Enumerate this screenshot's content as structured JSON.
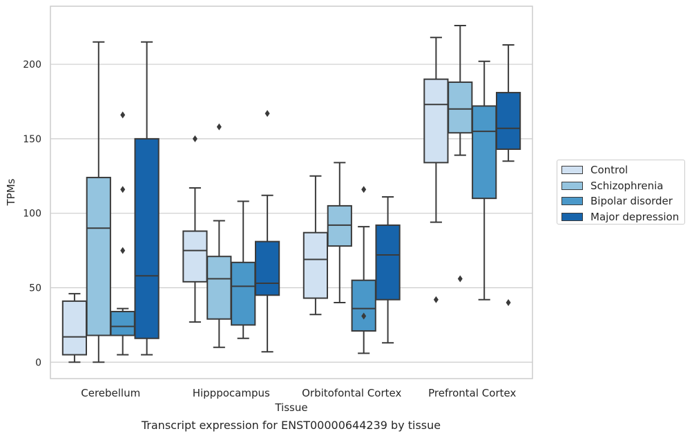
{
  "caption": "Transcript expression for ENST00000644239 by tissue",
  "chart_data": {
    "type": "box",
    "xlabel": "Tissue",
    "ylabel": "TPMs",
    "ylim": [
      -11,
      239
    ],
    "yticks": [
      0,
      50,
      100,
      150,
      200
    ],
    "grid": true,
    "legend_position": "right",
    "categories": [
      "Cerebellum",
      "Hipppocampus",
      "Orbitofontal Cortex",
      "Prefrontal Cortex"
    ],
    "series": [
      {
        "name": "Control",
        "color": "#d0e1f2",
        "boxes": [
          {
            "whisker_low": 0,
            "q1": 5,
            "median": 17,
            "q3": 41,
            "whisker_high": 46,
            "outliers": []
          },
          {
            "whisker_low": 27,
            "q1": 54,
            "median": 75,
            "q3": 88,
            "whisker_high": 117,
            "outliers": [
              150
            ]
          },
          {
            "whisker_low": 32,
            "q1": 43,
            "median": 69,
            "q3": 87,
            "whisker_high": 125,
            "outliers": []
          },
          {
            "whisker_low": 94,
            "q1": 134,
            "median": 173,
            "q3": 190,
            "whisker_high": 218,
            "outliers": [
              42
            ]
          }
        ]
      },
      {
        "name": "Schizophrenia",
        "color": "#94c4df",
        "boxes": [
          {
            "whisker_low": 0,
            "q1": 18,
            "median": 90,
            "q3": 124,
            "whisker_high": 215,
            "outliers": []
          },
          {
            "whisker_low": 10,
            "q1": 29,
            "median": 56,
            "q3": 71,
            "whisker_high": 95,
            "outliers": [
              158
            ]
          },
          {
            "whisker_low": 40,
            "q1": 78,
            "median": 92,
            "q3": 105,
            "whisker_high": 134,
            "outliers": []
          },
          {
            "whisker_low": 139,
            "q1": 154,
            "median": 170,
            "q3": 188,
            "whisker_high": 226,
            "outliers": [
              56
            ]
          }
        ]
      },
      {
        "name": "Bipolar disorder",
        "color": "#4a98c9",
        "boxes": [
          {
            "whisker_low": 5,
            "q1": 18,
            "median": 24,
            "q3": 34,
            "whisker_high": 36,
            "outliers": [
              75,
              116,
              166
            ]
          },
          {
            "whisker_low": 16,
            "q1": 25,
            "median": 51,
            "q3": 67,
            "whisker_high": 108,
            "outliers": []
          },
          {
            "whisker_low": 6,
            "q1": 21,
            "median": 36,
            "q3": 55,
            "whisker_high": 91,
            "outliers": [
              31,
              116
            ]
          },
          {
            "whisker_low": 42,
            "q1": 110,
            "median": 155,
            "q3": 172,
            "whisker_high": 202,
            "outliers": []
          }
        ]
      },
      {
        "name": "Major depression",
        "color": "#1764ab",
        "boxes": [
          {
            "whisker_low": 5,
            "q1": 16,
            "median": 58,
            "q3": 150,
            "whisker_high": 215,
            "outliers": []
          },
          {
            "whisker_low": 7,
            "q1": 45,
            "median": 53,
            "q3": 81,
            "whisker_high": 112,
            "outliers": [
              167
            ]
          },
          {
            "whisker_low": 13,
            "q1": 42,
            "median": 72,
            "q3": 92,
            "whisker_high": 111,
            "outliers": []
          },
          {
            "whisker_low": 135,
            "q1": 143,
            "median": 157,
            "q3": 181,
            "whisker_high": 213,
            "outliers": [
              40
            ]
          }
        ]
      }
    ]
  }
}
